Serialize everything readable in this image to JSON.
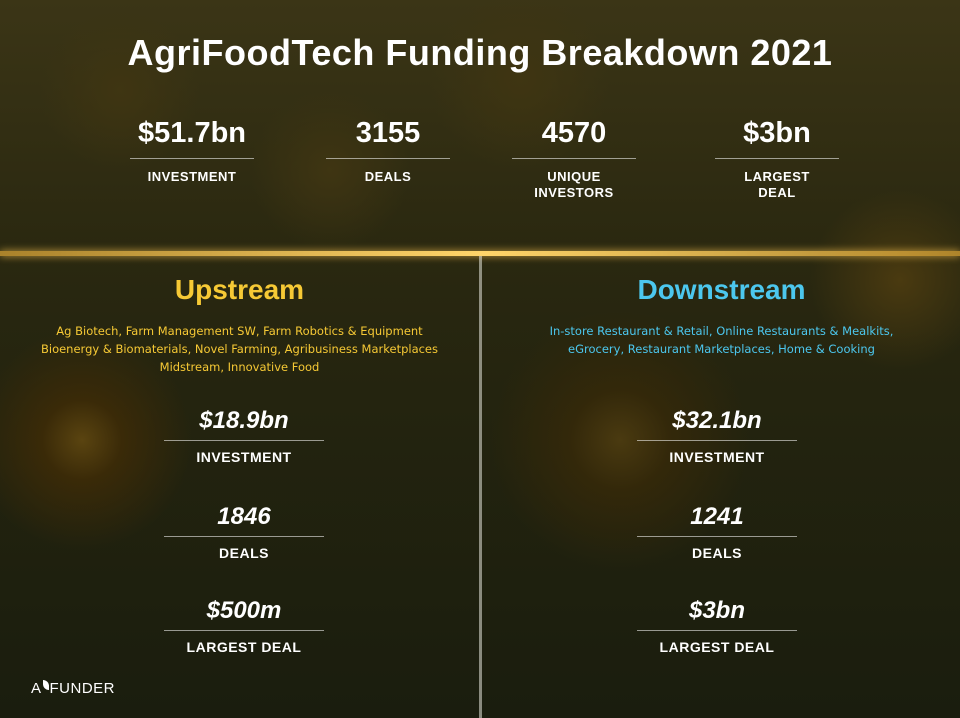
{
  "title": "AgriFoodTech Funding Breakdown 2021",
  "colors": {
    "upstream": "#f6c935",
    "downstream": "#4cc7ee"
  },
  "kpis": [
    {
      "value": "$51.7bn",
      "label": "INVESTMENT"
    },
    {
      "value": "3155",
      "label": "DEALS"
    },
    {
      "value": "4570",
      "label": "UNIQUE\nINVESTORS"
    },
    {
      "value": "$3bn",
      "label": "LARGEST\nDEAL"
    }
  ],
  "upstream": {
    "heading": "Upstream",
    "categories": [
      "Ag Biotech, Farm Management SW, Farm Robotics & Equipment",
      "Bioenergy & Biomaterials, Novel Farming, Agribusiness Marketplaces",
      "Midstream, Innovative Food"
    ],
    "stats": [
      {
        "value": "$18.9bn",
        "label": "INVESTMENT"
      },
      {
        "value": "1846",
        "label": "DEALS"
      },
      {
        "value": "$500m",
        "label": "LARGEST DEAL"
      }
    ]
  },
  "downstream": {
    "heading": "Downstream",
    "categories": [
      "In-store Restaurant & Retail, Online Restaurants & Mealkits,",
      "eGrocery, Restaurant Marketplaces, Home & Cooking"
    ],
    "stats": [
      {
        "value": "$32.1bn",
        "label": "INVESTMENT"
      },
      {
        "value": "1241",
        "label": "DEALS"
      },
      {
        "value": "$3bn",
        "label": "LARGEST DEAL"
      }
    ]
  },
  "logo": {
    "text_a": "A",
    "text_b": "FUNDER"
  }
}
